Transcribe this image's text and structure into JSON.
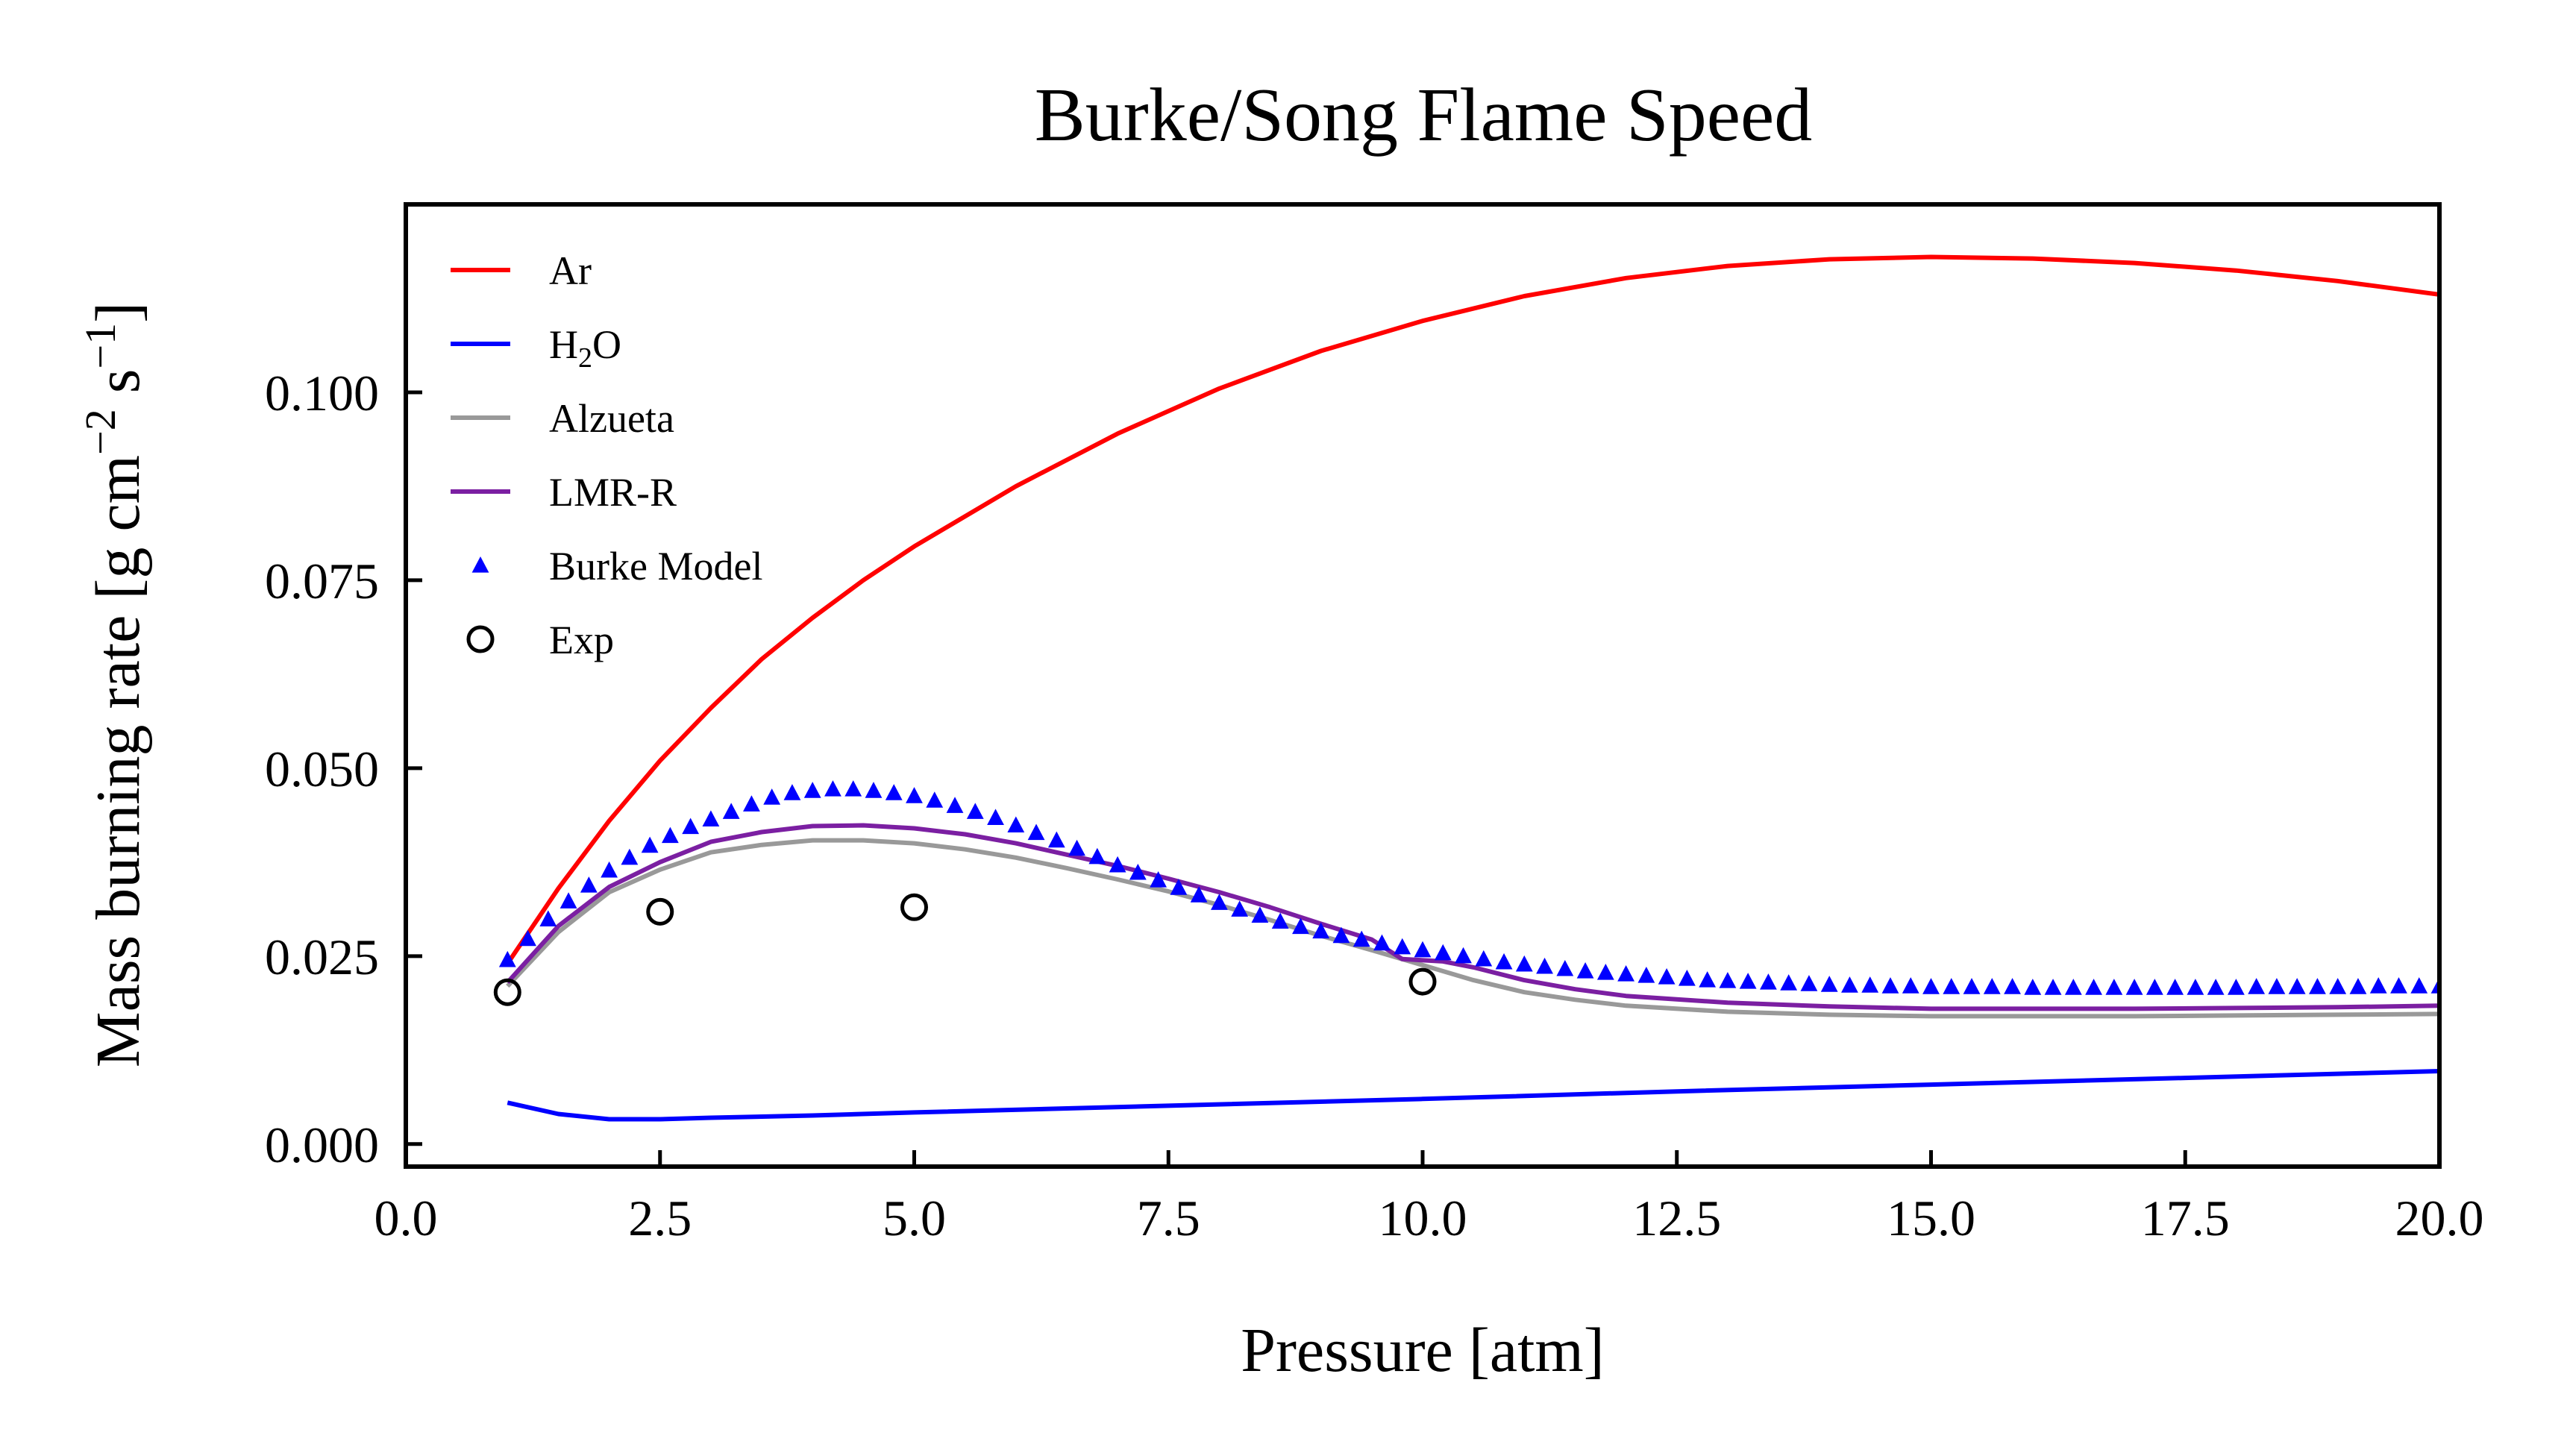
{
  "chart_data": {
    "type": "line",
    "title": "Burke/Song Flame Speed",
    "xlabel": "Pressure [atm]",
    "ylabel": {
      "prefix": "Mass burning rate [g cm",
      "sup1": "−2",
      "middle": " s",
      "sup2": "−1",
      "suffix": "]"
    },
    "xlim": [
      0,
      20
    ],
    "ylim": [
      -0.003,
      0.125
    ],
    "xticks": [
      0.0,
      2.5,
      5.0,
      7.5,
      10.0,
      12.5,
      15.0,
      17.5,
      20.0
    ],
    "xtick_labels": [
      "0.0",
      "2.5",
      "5.0",
      "7.5",
      "10.0",
      "12.5",
      "15.0",
      "17.5",
      "20.0"
    ],
    "yticks": [
      0.0,
      0.025,
      0.05,
      0.075,
      0.1
    ],
    "ytick_labels": [
      "0.000",
      "0.025",
      "0.050",
      "0.075",
      "0.100"
    ],
    "legend_position": "upper-left",
    "grid": false,
    "series": [
      {
        "name": "Ar",
        "legend": {
          "text": "Ar"
        },
        "kind": "line",
        "color": "#ff0000",
        "x": [
          1.0,
          1.5,
          2.0,
          2.5,
          3.0,
          3.5,
          4.0,
          4.5,
          5.0,
          6.0,
          7.0,
          8.0,
          9.0,
          10.0,
          11.0,
          12.0,
          13.0,
          14.0,
          15.0,
          16.0,
          17.0,
          18.0,
          19.0,
          20.0
        ],
        "y": [
          0.024,
          0.034,
          0.043,
          0.051,
          0.058,
          0.0645,
          0.07,
          0.075,
          0.0795,
          0.0875,
          0.0945,
          0.1005,
          0.1055,
          0.1095,
          0.1128,
          0.1152,
          0.1168,
          0.1177,
          0.118,
          0.1178,
          0.1172,
          0.1162,
          0.1148,
          0.113
        ]
      },
      {
        "name": "H2O",
        "legend": {
          "text": "H",
          "sub": "2",
          "after": "O"
        },
        "kind": "line",
        "color": "#0000ff",
        "x": [
          1.0,
          1.5,
          2.0,
          2.5,
          3.0,
          4.0,
          5.0,
          7.5,
          10.0,
          12.5,
          15.0,
          17.5,
          20.0
        ],
        "y": [
          0.0055,
          0.004,
          0.0033,
          0.0033,
          0.0035,
          0.0038,
          0.0042,
          0.0051,
          0.006,
          0.007,
          0.0079,
          0.0088,
          0.0097
        ]
      },
      {
        "name": "Alzueta",
        "legend": {
          "text": "Alzueta"
        },
        "kind": "line",
        "color": "#999999",
        "x": [
          1.0,
          1.5,
          2.0,
          2.5,
          3.0,
          3.5,
          4.0,
          4.5,
          5.0,
          5.5,
          6.0,
          6.5,
          7.0,
          7.5,
          8.0,
          8.5,
          9.0,
          9.5,
          10.0,
          10.5,
          11.0,
          11.5,
          12.0,
          13.0,
          14.0,
          15.0,
          16.0,
          17.0,
          18.0,
          19.0,
          20.0
        ],
        "y": [
          0.021,
          0.0282,
          0.0335,
          0.0365,
          0.0388,
          0.0398,
          0.0404,
          0.0404,
          0.04,
          0.0392,
          0.0381,
          0.0367,
          0.0352,
          0.0336,
          0.0318,
          0.0298,
          0.0277,
          0.0258,
          0.0238,
          0.0218,
          0.0202,
          0.0192,
          0.0184,
          0.0176,
          0.0172,
          0.017,
          0.017,
          0.017,
          0.0171,
          0.0172,
          0.0173
        ]
      },
      {
        "name": "LMR-R",
        "legend": {
          "text": "LMR-R"
        },
        "kind": "line",
        "color": "#7b1fa2",
        "x": [
          1.0,
          1.5,
          2.0,
          2.5,
          3.0,
          3.5,
          4.0,
          4.5,
          5.0,
          5.5,
          6.0,
          6.5,
          7.0,
          7.5,
          8.0,
          8.5,
          9.0,
          9.5,
          9.8,
          10.2,
          10.5,
          11.0,
          11.5,
          12.0,
          13.0,
          14.0,
          15.0,
          16.0,
          17.0,
          18.0,
          19.0,
          20.0
        ],
        "y": [
          0.0215,
          0.029,
          0.0342,
          0.0375,
          0.0402,
          0.0415,
          0.0423,
          0.0424,
          0.042,
          0.0412,
          0.04,
          0.0385,
          0.037,
          0.0353,
          0.0335,
          0.0315,
          0.0293,
          0.0272,
          0.0246,
          0.0243,
          0.0235,
          0.0218,
          0.0206,
          0.0197,
          0.0188,
          0.0183,
          0.018,
          0.018,
          0.018,
          0.0181,
          0.0182,
          0.0184
        ]
      },
      {
        "name": "Burke Model",
        "legend": {
          "text": "Burke Model"
        },
        "kind": "markers",
        "marker": "triangle",
        "color": "#0000ff",
        "x": [
          1.0,
          1.2,
          1.4,
          1.6,
          1.8,
          2.0,
          2.2,
          2.4,
          2.6,
          2.8,
          3.0,
          3.2,
          3.4,
          3.6,
          3.8,
          4.0,
          4.2,
          4.4,
          4.6,
          4.8,
          5.0,
          5.2,
          5.4,
          5.6,
          5.8,
          6.0,
          6.2,
          6.4,
          6.6,
          6.8,
          7.0,
          7.2,
          7.4,
          7.6,
          7.8,
          8.0,
          8.2,
          8.4,
          8.6,
          8.8,
          9.0,
          9.2,
          9.4,
          9.6,
          9.8,
          10.0,
          10.2,
          10.4,
          10.6,
          10.8,
          11.0,
          11.2,
          11.4,
          11.6,
          11.8,
          12.0,
          12.2,
          12.4,
          12.6,
          12.8,
          13.0,
          13.2,
          13.4,
          13.6,
          13.8,
          14.0,
          14.2,
          14.4,
          14.6,
          14.8,
          15.0,
          15.2,
          15.4,
          15.6,
          15.8,
          16.0,
          16.2,
          16.4,
          16.6,
          16.8,
          17.0,
          17.2,
          17.4,
          17.6,
          17.8,
          18.0,
          18.2,
          18.4,
          18.6,
          18.8,
          19.0,
          19.2,
          19.4,
          19.6,
          19.8,
          20.0
        ],
        "y": [
          0.0245,
          0.0273,
          0.0299,
          0.0323,
          0.0344,
          0.0364,
          0.0381,
          0.0397,
          0.041,
          0.0422,
          0.0432,
          0.0442,
          0.0452,
          0.0461,
          0.0467,
          0.047,
          0.0472,
          0.0472,
          0.047,
          0.0467,
          0.0463,
          0.0457,
          0.045,
          0.0442,
          0.0434,
          0.0424,
          0.0414,
          0.0404,
          0.0393,
          0.0382,
          0.0371,
          0.0361,
          0.0351,
          0.0341,
          0.0331,
          0.0321,
          0.0312,
          0.0304,
          0.0296,
          0.0289,
          0.0283,
          0.0277,
          0.0272,
          0.0267,
          0.0262,
          0.0258,
          0.0254,
          0.025,
          0.0246,
          0.0242,
          0.0239,
          0.0236,
          0.0233,
          0.023,
          0.0228,
          0.0226,
          0.0224,
          0.0222,
          0.022,
          0.0218,
          0.0217,
          0.0216,
          0.0215,
          0.0214,
          0.0213,
          0.0212,
          0.0211,
          0.0211,
          0.021,
          0.021,
          0.0209,
          0.0209,
          0.0209,
          0.0209,
          0.0209,
          0.0208,
          0.0208,
          0.0208,
          0.0208,
          0.0208,
          0.0208,
          0.0208,
          0.0208,
          0.0208,
          0.0208,
          0.0208,
          0.0209,
          0.0209,
          0.0209,
          0.0209,
          0.0209,
          0.0209,
          0.021,
          0.021,
          0.021,
          0.021
        ]
      },
      {
        "name": "Exp",
        "legend": {
          "text": "Exp"
        },
        "kind": "markers",
        "marker": "circle-open",
        "color": "#000000",
        "x": [
          1.0,
          2.5,
          5.0,
          10.0
        ],
        "y": [
          0.0202,
          0.0309,
          0.0315,
          0.0216
        ]
      }
    ]
  }
}
